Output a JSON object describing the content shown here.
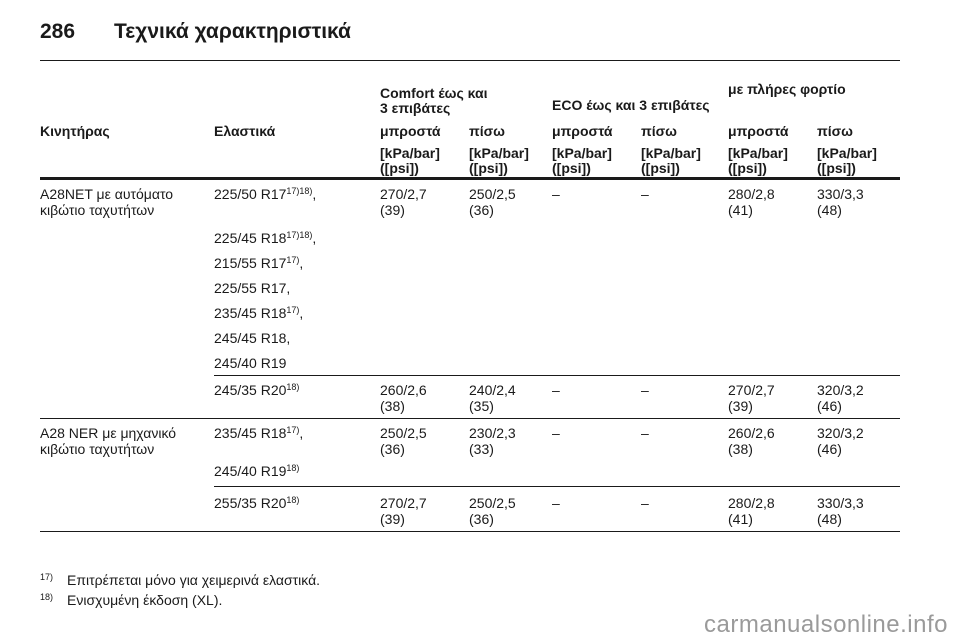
{
  "page": {
    "number": "286",
    "title": "Τεχνικά χαρακτηριστικά"
  },
  "header": {
    "groups": [
      "Comfort έως και",
      "3 επιβάτες",
      "ECO έως και 3 επιβάτες",
      "με πλήρες φορτίο"
    ],
    "engine_label": "Κινητήρας",
    "tyres_label": "Ελαστικά",
    "front": "μπροστά",
    "rear": "πίσω",
    "unit_line1": "[kPa/bar]",
    "unit_line2": "([psi])"
  },
  "rows": [
    {
      "engine": [
        "A28NET με αυτόματο",
        "κιβώτιο ταχυτήτων"
      ],
      "tyres": [
        {
          "size": "225/50 R17",
          "sup": "17)18)",
          "suffix": ","
        },
        {
          "size": "225/45 R18",
          "sup": "17)18)",
          "suffix": ","
        },
        {
          "size": "215/55 R17",
          "sup": "17)",
          "suffix": ","
        },
        {
          "size": "225/55 R17,",
          "sup": "",
          "suffix": ""
        },
        {
          "size": "235/45 R18",
          "sup": "17)",
          "suffix": ","
        },
        {
          "size": "245/45 R18,",
          "sup": "",
          "suffix": ""
        },
        {
          "size": "245/40 R19",
          "sup": "",
          "suffix": ""
        }
      ],
      "values": [
        [
          "270/2,7",
          "(39)"
        ],
        [
          "250/2,5",
          "(36)"
        ],
        [
          "–",
          ""
        ],
        [
          "–",
          ""
        ],
        [
          "280/2,8",
          "(41)"
        ],
        [
          "330/3,3",
          "(48)"
        ]
      ]
    },
    {
      "engine": [
        "",
        ""
      ],
      "tyres": [
        {
          "size": "245/35 R20",
          "sup": "18)",
          "suffix": ""
        }
      ],
      "values": [
        [
          "260/2,6",
          "(38)"
        ],
        [
          "240/2,4",
          "(35)"
        ],
        [
          "–",
          ""
        ],
        [
          "–",
          ""
        ],
        [
          "270/2,7",
          "(39)"
        ],
        [
          "320/3,2",
          "(46)"
        ]
      ]
    },
    {
      "engine": [
        "A28 NER με μηχανικό",
        "κιβώτιο ταχυτήτων"
      ],
      "tyres": [
        {
          "size": "235/45 R18",
          "sup": "17)",
          "suffix": ","
        },
        {
          "size": "245/40 R19",
          "sup": "18)",
          "suffix": ""
        }
      ],
      "values": [
        [
          "250/2,5",
          "(36)"
        ],
        [
          "230/2,3",
          "(33)"
        ],
        [
          "–",
          ""
        ],
        [
          "–",
          ""
        ],
        [
          "260/2,6",
          "(38)"
        ],
        [
          "320/3,2",
          "(46)"
        ]
      ]
    },
    {
      "engine": [
        "",
        ""
      ],
      "tyres": [
        {
          "size": "255/35 R20",
          "sup": "18)",
          "suffix": ""
        }
      ],
      "values": [
        [
          "270/2,7",
          "(39)"
        ],
        [
          "250/2,5",
          "(36)"
        ],
        [
          "–",
          ""
        ],
        [
          "–",
          ""
        ],
        [
          "280/2,8",
          "(41)"
        ],
        [
          "330/3,3",
          "(48)"
        ]
      ]
    }
  ],
  "footnotes": [
    {
      "mark": "17)",
      "text": "Επιτρέπεται μόνο για χειμερινά ελαστικά."
    },
    {
      "mark": "18)",
      "text": "Ενισχυμένη έκδοση (XL)."
    }
  ],
  "watermark": "carmanualsonline.info"
}
